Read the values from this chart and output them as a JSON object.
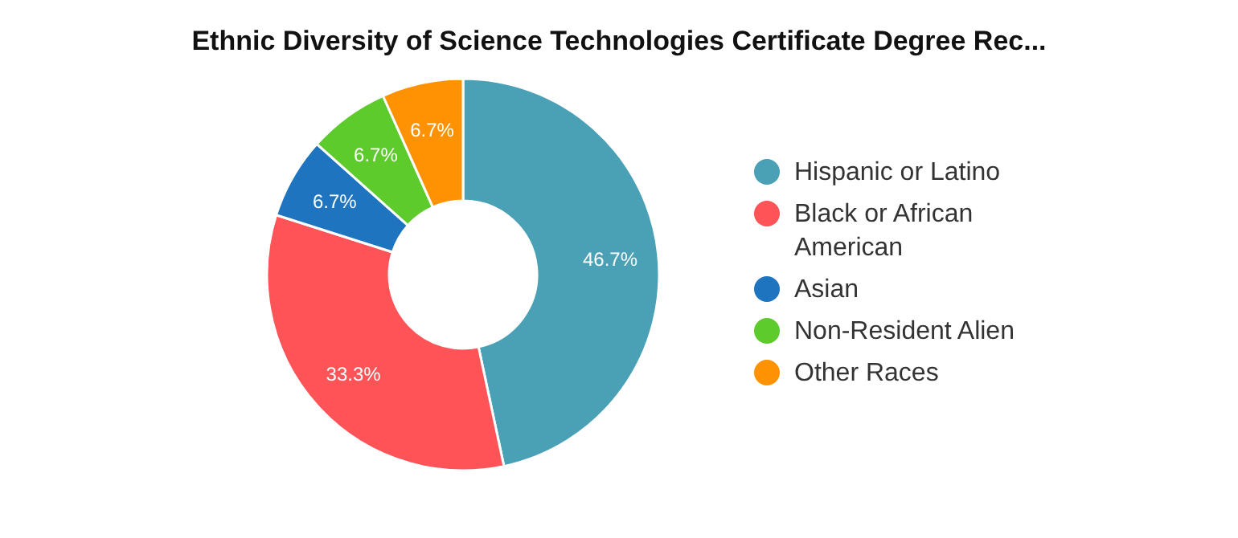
{
  "chart_data": {
    "type": "donut",
    "title": "Ethnic Diversity of Science Technologies Certificate Degree Rec...",
    "categories": [
      "Hispanic or Latino",
      "Black or African American",
      "Asian",
      "Non-Resident Alien",
      "Other Races"
    ],
    "values": [
      46.7,
      33.3,
      6.7,
      6.7,
      6.7
    ],
    "colors": [
      "#4aa0b5",
      "#fe5357",
      "#1f74c0",
      "#5ecb2c",
      "#fe9202"
    ],
    "value_labels": [
      "46.7%",
      "33.3%",
      "6.7%",
      "6.7%",
      "6.7%"
    ],
    "legend": "right"
  }
}
